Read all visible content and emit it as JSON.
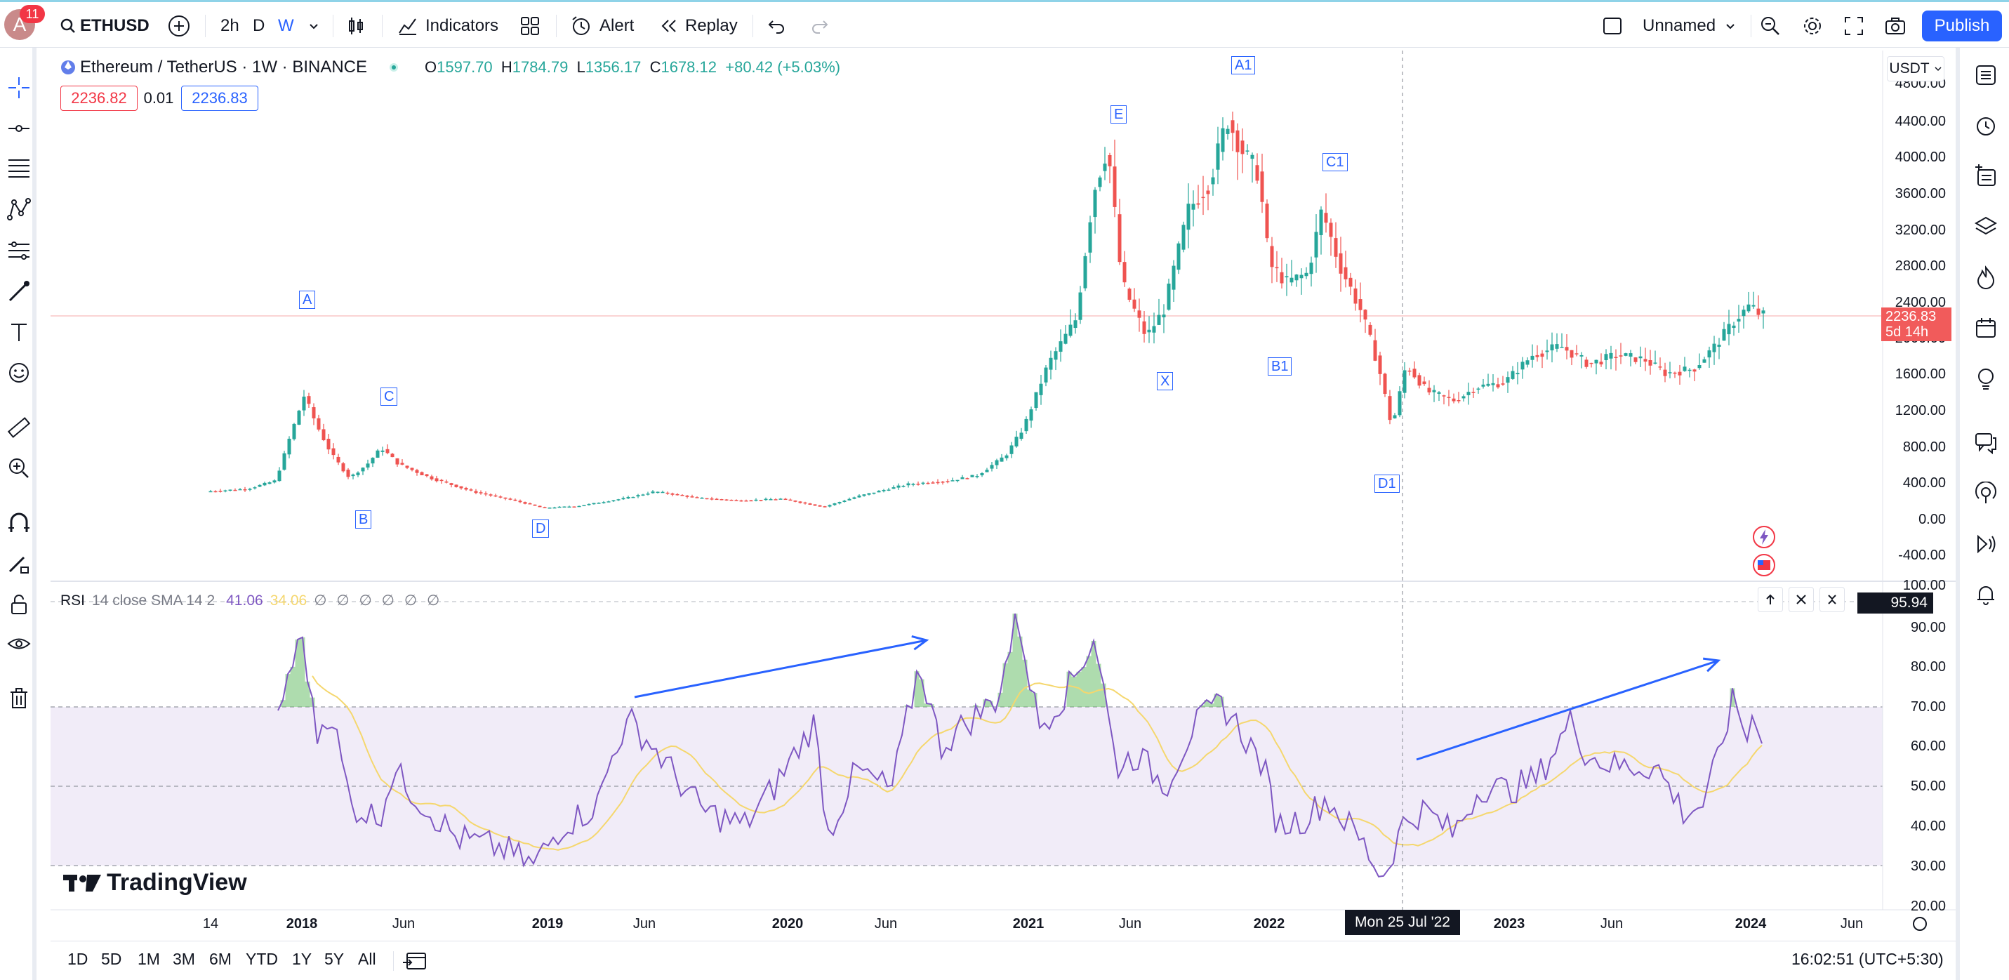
{
  "topbar": {
    "avatar_letter": "A",
    "notifications": "11",
    "symbol": "ETHUSD",
    "intervals": [
      "2h",
      "D",
      "W"
    ],
    "active_interval": "W",
    "indicators_label": "Indicators",
    "alert_label": "Alert",
    "replay_label": "Replay",
    "layout_name": "Unnamed",
    "publish_label": "Publish"
  },
  "chart": {
    "title": "Ethereum / TetherUS · 1W · BINANCE",
    "ohlc": {
      "o_label": "O",
      "o": "1597.70",
      "h_label": "H",
      "h": "1784.79",
      "l_label": "L",
      "l": "1356.17",
      "c_label": "C",
      "c": "1678.12",
      "change": "+80.42 (+5.03%)"
    },
    "bid": "2236.82",
    "spread": "0.01",
    "ask": "2236.83",
    "currency": "USDT",
    "last_price": "2236.83",
    "countdown": "5d 14h",
    "price_ticks": [
      "4800.00",
      "4400.00",
      "4000.00",
      "3600.00",
      "3200.00",
      "2800.00",
      "2400.00",
      "2000.00",
      "1600.00",
      "1200.00",
      "800.00",
      "400.00",
      "0.00",
      "-400.00",
      "100.00"
    ],
    "waves": [
      "A",
      "B",
      "C",
      "D",
      "E",
      "X",
      "A1",
      "B1",
      "C1",
      "D1"
    ]
  },
  "rsi": {
    "label": "RSI",
    "params": "14 close SMA 14 2",
    "value": "41.06",
    "sma_value": "34.06",
    "na_values": [
      "∅",
      "∅",
      "∅",
      "∅",
      "∅",
      "∅"
    ],
    "current": "95.94",
    "ticks": [
      "90.00",
      "80.00",
      "70.00",
      "60.00",
      "50.00",
      "40.00",
      "30.00",
      "20.00"
    ],
    "upper_band": 70,
    "middle_band": 50,
    "lower_band": 30,
    "ylim": [
      20,
      100
    ]
  },
  "time_axis": {
    "labels": [
      "14",
      "2018",
      "Jun",
      "2019",
      "Jun",
      "2020",
      "Jun",
      "2021",
      "Jun",
      "2022",
      "2023",
      "Jun",
      "2024",
      "Jun"
    ],
    "crosshair_date": "Mon 25 Jul '22"
  },
  "branding": {
    "logo_text": "TradingView"
  },
  "bottombar": {
    "ranges": [
      "1D",
      "5D",
      "1M",
      "3M",
      "6M",
      "YTD",
      "1Y",
      "5Y",
      "All"
    ],
    "clock": "16:02:51 (UTC+5:30)"
  },
  "colors": {
    "up": "#26a69a",
    "down": "#ef5350",
    "rsi_line": "#7e57c2",
    "rsi_sma": "#f5d76e",
    "rsi_band": "#ede7f6",
    "accent": "#2962ff"
  }
}
